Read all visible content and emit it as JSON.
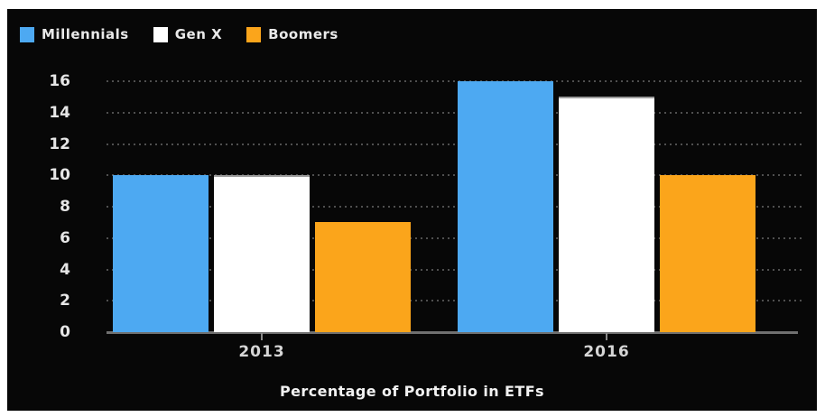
{
  "chart_data": {
    "type": "bar",
    "title": "Percentage of Portfolio in ETFs",
    "xlabel": "",
    "ylabel": "",
    "categories": [
      "2013",
      "2016"
    ],
    "series": [
      {
        "name": "Millennials",
        "color": "#4DA9F2",
        "values": [
          10,
          16
        ]
      },
      {
        "name": "Gen X",
        "color": "#FFFFFF",
        "values": [
          10,
          15
        ]
      },
      {
        "name": "Boomers",
        "color": "#FBA51B",
        "values": [
          7,
          10
        ]
      }
    ],
    "ylim": [
      0,
      16
    ],
    "yticks": [
      0,
      2,
      4,
      6,
      8,
      10,
      12,
      14,
      16
    ],
    "grid": "horizontal-dotted",
    "legend_position": "top-left",
    "colors": {
      "background": "#070707",
      "page_background": "#FFFFFF",
      "text": "#E6E6E6",
      "gridline": "#4F4F4F",
      "axis_line": "#6F6F6F"
    }
  }
}
